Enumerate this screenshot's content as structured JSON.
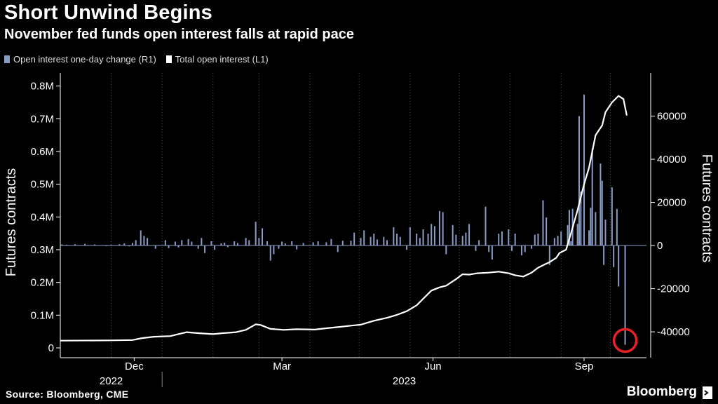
{
  "title": "Short Unwind Begins",
  "subtitle": "November fed funds open interest falls at rapid pace",
  "source": "Source: Bloomberg, CME",
  "brand": "Bloomberg",
  "colors": {
    "bars": "#8a9cc4",
    "line": "#ffffff",
    "background": "#000000",
    "highlight": "#e8202a",
    "grid": "#555555"
  },
  "chart_data": {
    "type": "bar+line",
    "series": [
      {
        "name": "Open interest one-day change (R1)",
        "axis": "right",
        "type": "bar"
      },
      {
        "name": "Total open interest (L1)",
        "axis": "left",
        "type": "line"
      }
    ],
    "left_axis": {
      "label": "Futures contracts",
      "ticks": [
        0,
        0.1,
        0.2,
        0.3,
        0.4,
        0.5,
        0.6,
        0.7,
        0.8
      ],
      "tick_labels": [
        "0",
        "0.1M",
        "0.2M",
        "0.3M",
        "0.4M",
        "0.5M",
        "0.6M",
        "0.7M",
        "0.8M"
      ],
      "ylim": [
        -0.03,
        0.84
      ]
    },
    "right_axis": {
      "label": "Futures contracts",
      "ticks": [
        -40000,
        -20000,
        0,
        20000,
        40000,
        60000
      ],
      "tick_labels": [
        "-40000",
        "-20000",
        "0",
        "20000",
        "40000",
        "60000"
      ],
      "ylim": [
        -52000,
        80000
      ]
    },
    "x_axis": {
      "range": [
        "2022-10-31",
        "2023-10-23"
      ],
      "month_ticks": [
        "Dec",
        "Mar",
        "Jun",
        "Sep"
      ],
      "year_labels": [
        "2022",
        "2023"
      ]
    },
    "grid": "vertical",
    "legend": "top-left",
    "line_points": [
      [
        "2022-10-31",
        0.022
      ],
      [
        "2022-11-30",
        0.023
      ],
      [
        "2022-12-14",
        0.024
      ],
      [
        "2022-12-20",
        0.03
      ],
      [
        "2022-12-27",
        0.034
      ],
      [
        "2023-01-06",
        0.036
      ],
      [
        "2023-01-16",
        0.048
      ],
      [
        "2023-01-23",
        0.045
      ],
      [
        "2023-02-01",
        0.042
      ],
      [
        "2023-02-07",
        0.045
      ],
      [
        "2023-02-15",
        0.048
      ],
      [
        "2023-02-21",
        0.055
      ],
      [
        "2023-02-27",
        0.072
      ],
      [
        "2023-03-02",
        0.07
      ],
      [
        "2023-03-08",
        0.058
      ],
      [
        "2023-03-16",
        0.055
      ],
      [
        "2023-03-24",
        0.057
      ],
      [
        "2023-04-04",
        0.056
      ],
      [
        "2023-04-11",
        0.06
      ],
      [
        "2023-04-19",
        0.064
      ],
      [
        "2023-04-26",
        0.068
      ],
      [
        "2023-05-02",
        0.071
      ],
      [
        "2023-05-10",
        0.083
      ],
      [
        "2023-05-18",
        0.092
      ],
      [
        "2023-05-24",
        0.101
      ],
      [
        "2023-05-30",
        0.112
      ],
      [
        "2023-06-05",
        0.13
      ],
      [
        "2023-06-09",
        0.15
      ],
      [
        "2023-06-14",
        0.175
      ],
      [
        "2023-06-19",
        0.185
      ],
      [
        "2023-06-23",
        0.19
      ],
      [
        "2023-06-29",
        0.21
      ],
      [
        "2023-07-03",
        0.225
      ],
      [
        "2023-07-07",
        0.224
      ],
      [
        "2023-07-12",
        0.228
      ],
      [
        "2023-07-19",
        0.23
      ],
      [
        "2023-07-25",
        0.233
      ],
      [
        "2023-07-31",
        0.228
      ],
      [
        "2023-08-04",
        0.222
      ],
      [
        "2023-08-09",
        0.218
      ],
      [
        "2023-08-14",
        0.23
      ],
      [
        "2023-08-18",
        0.245
      ],
      [
        "2023-08-22",
        0.255
      ],
      [
        "2023-08-25",
        0.262
      ],
      [
        "2023-08-29",
        0.275
      ],
      [
        "2023-08-31",
        0.29
      ],
      [
        "2023-09-04",
        0.3
      ],
      [
        "2023-09-07",
        0.35
      ],
      [
        "2023-09-11",
        0.42
      ],
      [
        "2023-09-13",
        0.46
      ],
      [
        "2023-09-15",
        0.5
      ],
      [
        "2023-09-18",
        0.55
      ],
      [
        "2023-09-20",
        0.6
      ],
      [
        "2023-09-22",
        0.65
      ],
      [
        "2023-09-26",
        0.68
      ],
      [
        "2023-09-28",
        0.72
      ],
      [
        "2023-10-02",
        0.75
      ],
      [
        "2023-10-04",
        0.76
      ],
      [
        "2023-10-06",
        0.77
      ],
      [
        "2023-10-09",
        0.76
      ],
      [
        "2023-10-11",
        0.71
      ]
    ],
    "bars": [
      [
        "2022-11-01",
        500
      ],
      [
        "2022-11-04",
        400
      ],
      [
        "2022-11-09",
        600
      ],
      [
        "2022-11-15",
        800
      ],
      [
        "2022-11-21",
        500
      ],
      [
        "2022-11-28",
        -300
      ],
      [
        "2022-12-01",
        300
      ],
      [
        "2022-12-06",
        600
      ],
      [
        "2022-12-09",
        1000
      ],
      [
        "2022-12-12",
        -400
      ],
      [
        "2022-12-14",
        1200
      ],
      [
        "2022-12-16",
        2500
      ],
      [
        "2022-12-19",
        7000
      ],
      [
        "2022-12-21",
        4500
      ],
      [
        "2022-12-23",
        3500
      ],
      [
        "2022-12-28",
        -1500
      ],
      [
        "2023-01-03",
        2500
      ],
      [
        "2023-01-05",
        -1200
      ],
      [
        "2023-01-09",
        1800
      ],
      [
        "2023-01-11",
        -900
      ],
      [
        "2023-01-13",
        2500
      ],
      [
        "2023-01-17",
        3000
      ],
      [
        "2023-01-19",
        1800
      ],
      [
        "2023-01-23",
        -1500
      ],
      [
        "2023-01-25",
        3500
      ],
      [
        "2023-01-27",
        -3500
      ],
      [
        "2023-01-31",
        2000
      ],
      [
        "2023-02-02",
        -2000
      ],
      [
        "2023-02-06",
        1000
      ],
      [
        "2023-02-08",
        1300
      ],
      [
        "2023-02-10",
        -800
      ],
      [
        "2023-02-14",
        2000
      ],
      [
        "2023-02-16",
        1200
      ],
      [
        "2023-02-21",
        3500
      ],
      [
        "2023-02-23",
        2500
      ],
      [
        "2023-02-27",
        11000
      ],
      [
        "2023-03-01",
        3500
      ],
      [
        "2023-03-03",
        8000
      ],
      [
        "2023-03-06",
        2000
      ],
      [
        "2023-03-08",
        -7000
      ],
      [
        "2023-03-10",
        -4000
      ],
      [
        "2023-03-13",
        -1500
      ],
      [
        "2023-03-15",
        1800
      ],
      [
        "2023-03-17",
        1000
      ],
      [
        "2023-03-21",
        2000
      ],
      [
        "2023-03-24",
        -1800
      ],
      [
        "2023-03-28",
        1200
      ],
      [
        "2023-04-03",
        1500
      ],
      [
        "2023-04-06",
        2000
      ],
      [
        "2023-04-11",
        1500
      ],
      [
        "2023-04-14",
        3000
      ],
      [
        "2023-04-18",
        -3000
      ],
      [
        "2023-04-21",
        2200
      ],
      [
        "2023-04-26",
        2200
      ],
      [
        "2023-04-28",
        6000
      ],
      [
        "2023-05-02",
        3500
      ],
      [
        "2023-05-04",
        7000
      ],
      [
        "2023-05-08",
        4000
      ],
      [
        "2023-05-10",
        5500
      ],
      [
        "2023-05-12",
        2800
      ],
      [
        "2023-05-16",
        4000
      ],
      [
        "2023-05-18",
        2500
      ],
      [
        "2023-05-22",
        8500
      ],
      [
        "2023-05-24",
        5500
      ],
      [
        "2023-05-26",
        4000
      ],
      [
        "2023-05-30",
        -2000
      ],
      [
        "2023-06-01",
        8500
      ],
      [
        "2023-06-05",
        5500
      ],
      [
        "2023-06-07",
        3500
      ],
      [
        "2023-06-09",
        7500
      ],
      [
        "2023-06-12",
        5500
      ],
      [
        "2023-06-14",
        10000
      ],
      [
        "2023-06-16",
        9000
      ],
      [
        "2023-06-19",
        16000
      ],
      [
        "2023-06-21",
        15500
      ],
      [
        "2023-06-23",
        -4000
      ],
      [
        "2023-06-27",
        9500
      ],
      [
        "2023-06-29",
        5000
      ],
      [
        "2023-07-03",
        4500
      ],
      [
        "2023-07-05",
        6000
      ],
      [
        "2023-07-07",
        10000
      ],
      [
        "2023-07-11",
        -2500
      ],
      [
        "2023-07-13",
        2500
      ],
      [
        "2023-07-17",
        18000
      ],
      [
        "2023-07-19",
        -3000
      ],
      [
        "2023-07-21",
        -6500
      ],
      [
        "2023-07-25",
        5500
      ],
      [
        "2023-07-27",
        6500
      ],
      [
        "2023-07-31",
        7500
      ],
      [
        "2023-08-02",
        -2500
      ],
      [
        "2023-08-04",
        5500
      ],
      [
        "2023-08-08",
        -4500
      ],
      [
        "2023-08-10",
        -3000
      ],
      [
        "2023-08-14",
        -1500
      ],
      [
        "2023-08-16",
        5000
      ],
      [
        "2023-08-18",
        5500
      ],
      [
        "2023-08-21",
        21000
      ],
      [
        "2023-08-23",
        13000
      ],
      [
        "2023-08-25",
        -9000
      ],
      [
        "2023-08-28",
        3500
      ],
      [
        "2023-08-30",
        4500
      ],
      [
        "2023-09-01",
        6500
      ],
      [
        "2023-09-05",
        9500
      ],
      [
        "2023-09-06",
        16500
      ],
      [
        "2023-09-07",
        2000
      ],
      [
        "2023-09-08",
        17000
      ],
      [
        "2023-09-11",
        10000
      ],
      [
        "2023-09-12",
        60000
      ],
      [
        "2023-09-13",
        25000
      ],
      [
        "2023-09-15",
        70000
      ],
      [
        "2023-09-18",
        7000
      ],
      [
        "2023-09-19",
        17500
      ],
      [
        "2023-09-20",
        45000
      ],
      [
        "2023-09-22",
        15500
      ],
      [
        "2023-09-25",
        38000
      ],
      [
        "2023-09-26",
        30000
      ],
      [
        "2023-09-27",
        -9000
      ],
      [
        "2023-09-28",
        12000
      ],
      [
        "2023-10-02",
        27000
      ],
      [
        "2023-10-03",
        -10000
      ],
      [
        "2023-10-05",
        17000
      ],
      [
        "2023-10-06",
        -19000
      ],
      [
        "2023-10-10",
        -46000
      ]
    ],
    "annotation": {
      "type": "circle",
      "x": "2023-10-10",
      "y_right": -44000,
      "color": "#e8202a"
    }
  }
}
